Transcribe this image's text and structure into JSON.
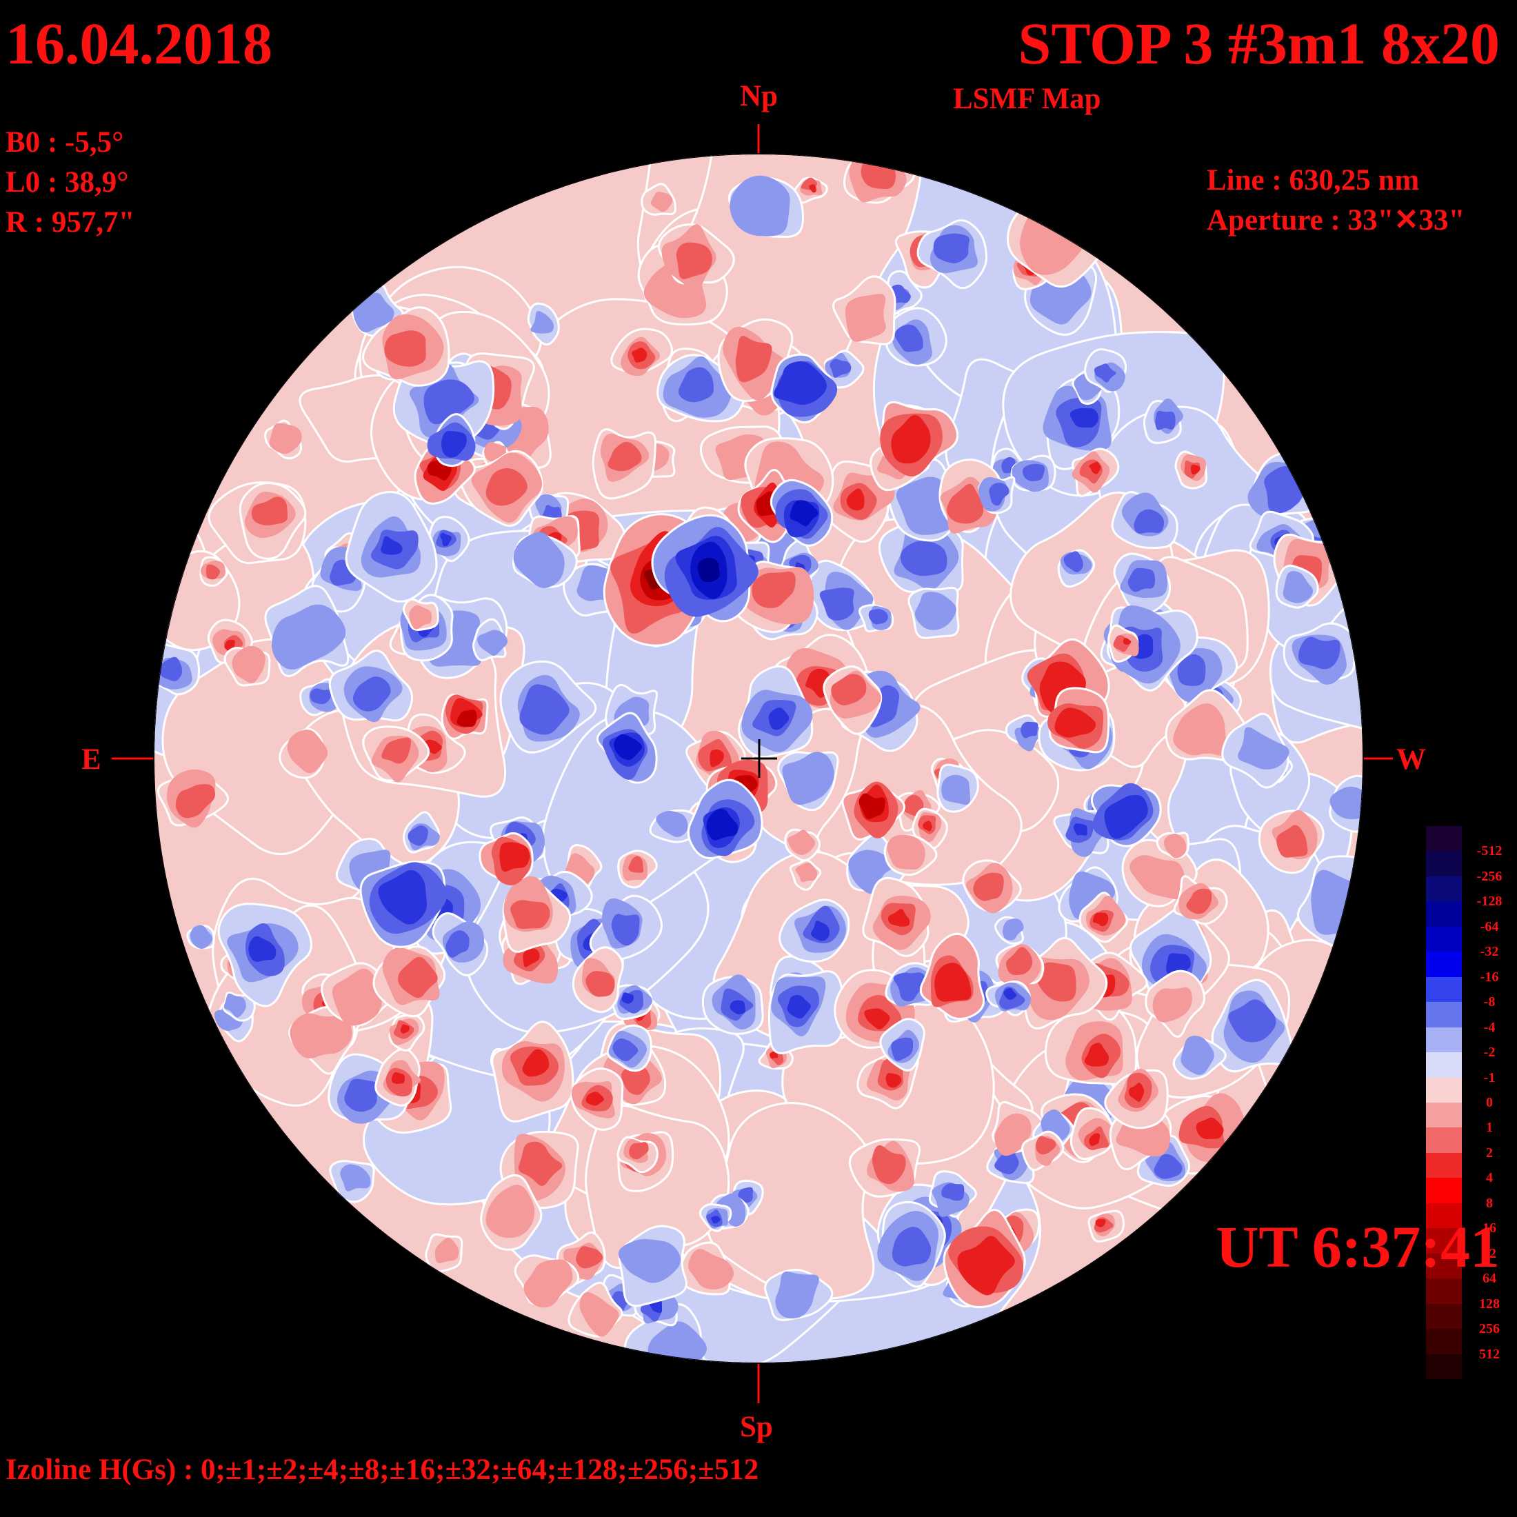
{
  "header": {
    "date": "16.04.2018",
    "title": "STOP 3 #3m1 8x20",
    "subtitle": "LSMF  Map",
    "ut": "UT 6:37:41"
  },
  "params": {
    "b0": "B0 : -5,5°",
    "l0": "L0 : 38,9°",
    "r": "R  : 957,7\""
  },
  "instrument": {
    "line": "Line :  630,25 nm",
    "aperture": "Aperture : 33\"✕33\""
  },
  "directions": {
    "north": "Np",
    "south": "Sp",
    "east": "E",
    "west": "W"
  },
  "footer": {
    "izoline": "Izoline H(Gs) : 0;±1;±2;±4;±8;±16;±32;±64;±128;±256;±512"
  },
  "legend": {
    "swatches": [
      "#1a0033",
      "#0d0450",
      "#0a0a7a",
      "#00009a",
      "#0000c0",
      "#0000ee",
      "#3344ee",
      "#6677ee",
      "#a8b0f5",
      "#d9dcf8",
      "#f9d2d2",
      "#f4a0a0",
      "#f06868",
      "#ee2a2a",
      "#ff0000",
      "#d80000",
      "#b00000",
      "#900000",
      "#700000",
      "#500000",
      "#3a0000",
      "#200000"
    ],
    "labels": [
      "-512",
      "-256",
      "-128",
      "-64",
      "-32",
      "-16",
      "-8",
      "-4",
      "-2",
      "-1",
      "0",
      "1",
      "2",
      "4",
      "8",
      "16",
      "32",
      "64",
      "128",
      "256",
      "512"
    ]
  },
  "map": {
    "colors": {
      "neg1": "#c9cff5",
      "neg2": "#8c98ee",
      "neg4": "#5560e6",
      "neg8": "#2a34dc",
      "neg16": "#0a12c8",
      "neg32": "#000090",
      "pos1": "#f7caca",
      "pos2": "#f49a9a",
      "pos4": "#ee5a5a",
      "pos8": "#e81e1e",
      "pos16": "#c40000",
      "pos32": "#8a0000",
      "contour": "#ffffff",
      "cross": "#000000"
    }
  }
}
